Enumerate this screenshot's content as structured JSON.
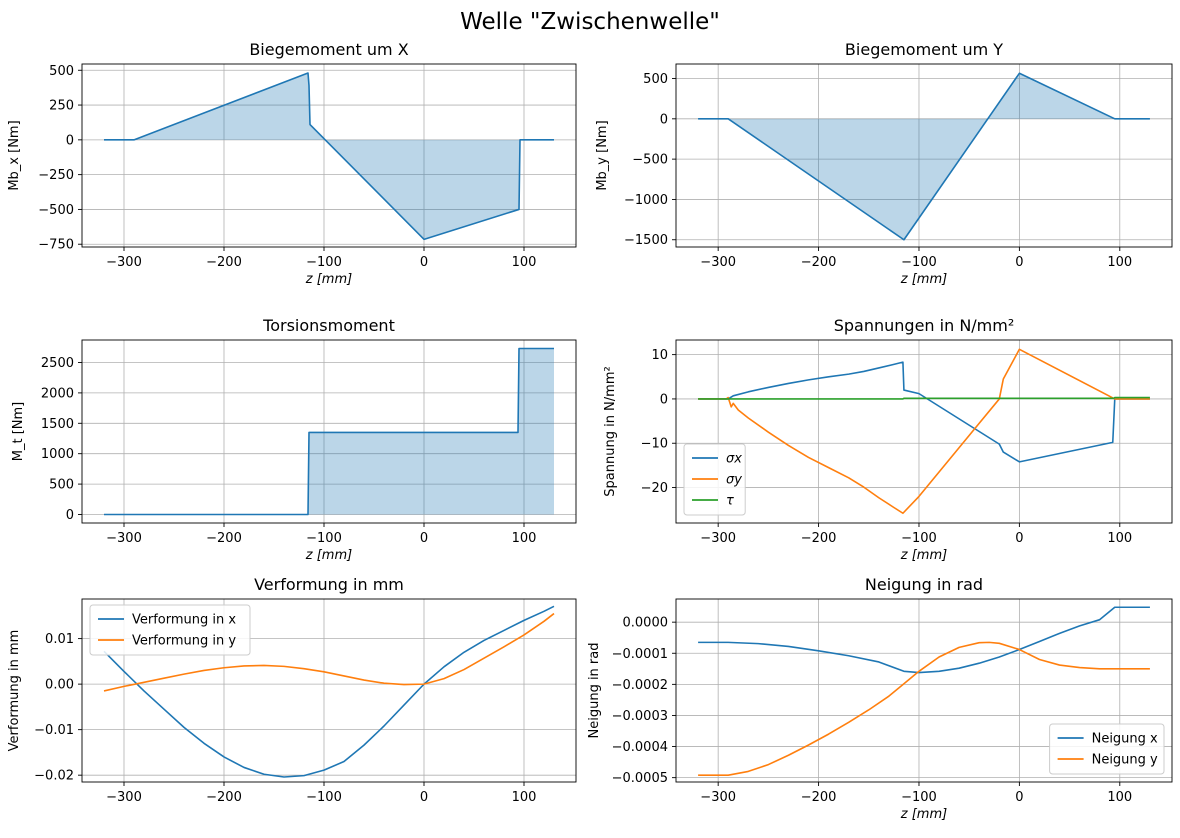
{
  "figure_title": "Welle \"Zwischenwelle\"",
  "colors": {
    "blue": "#1f77b4",
    "orange": "#ff7f0e",
    "green": "#2ca02c",
    "fill": "#1f77b4",
    "grid": "#b0b0b0"
  },
  "chart_data": [
    {
      "id": "mbx",
      "type": "area",
      "title": "Biegemoment um X",
      "xlabel": "z [mm]",
      "ylabel": "Mb_x [Nm]",
      "xlim": [
        -342,
        152
      ],
      "ylim": [
        -770,
        545
      ],
      "xticks": [
        -300,
        -200,
        -100,
        0,
        100
      ],
      "xtick_labels": [
        "−300",
        "−200",
        "−100",
        "0",
        "100"
      ],
      "yticks": [
        -750,
        -500,
        -250,
        0,
        250,
        500
      ],
      "ytick_labels": [
        "−750",
        "−500",
        "−250",
        "0",
        "250",
        "500"
      ],
      "grid": true,
      "fill_to_zero": true,
      "series": [
        {
          "color": "blue",
          "x": [
            -320,
            -290,
            -116,
            -115,
            -114,
            0,
            95,
            96,
            130
          ],
          "y": [
            0,
            0,
            480,
            390,
            110,
            -715,
            -500,
            0,
            0
          ]
        }
      ]
    },
    {
      "id": "mby",
      "type": "area",
      "title": "Biegemoment um Y",
      "xlabel": "z [mm]",
      "ylabel": "Mb_y [Nm]",
      "xlim": [
        -342,
        152
      ],
      "ylim": [
        -1590,
        680
      ],
      "xticks": [
        -300,
        -200,
        -100,
        0,
        100
      ],
      "xtick_labels": [
        "−300",
        "−200",
        "−100",
        "0",
        "100"
      ],
      "yticks": [
        -1500,
        -1000,
        -500,
        0,
        500
      ],
      "ytick_labels": [
        "−1500",
        "−1000",
        "−500",
        "0",
        "500"
      ],
      "grid": true,
      "fill_to_zero": true,
      "series": [
        {
          "color": "blue",
          "x": [
            -320,
            -290,
            -115,
            0,
            95,
            130
          ],
          "y": [
            0,
            0,
            -1500,
            565,
            0,
            0
          ]
        }
      ]
    },
    {
      "id": "mt",
      "type": "area",
      "title": "Torsionsmoment",
      "xlabel": "z [mm]",
      "ylabel": "M_t [Nm]",
      "xlim": [
        -342,
        152
      ],
      "ylim": [
        -140,
        2870
      ],
      "xticks": [
        -300,
        -200,
        -100,
        0,
        100
      ],
      "xtick_labels": [
        "−300",
        "−200",
        "−100",
        "0",
        "100"
      ],
      "yticks": [
        0,
        500,
        1000,
        1500,
        2000,
        2500
      ],
      "ytick_labels": [
        "0",
        "500",
        "1000",
        "1500",
        "2000",
        "2500"
      ],
      "grid": true,
      "fill_to_zero": true,
      "series": [
        {
          "color": "blue",
          "x": [
            -320,
            -116,
            -115,
            94,
            95,
            130
          ],
          "y": [
            0,
            0,
            1350,
            1350,
            2730,
            2730
          ]
        }
      ]
    },
    {
      "id": "stress",
      "type": "line",
      "title": "Spannungen in N/mm²",
      "xlabel": "z [mm]",
      "ylabel": "Spannung in N/mm²",
      "xlim": [
        -342,
        152
      ],
      "ylim": [
        -28,
        13.3
      ],
      "xticks": [
        -300,
        -200,
        -100,
        0,
        100
      ],
      "xtick_labels": [
        "−300",
        "−200",
        "−100",
        "0",
        "100"
      ],
      "yticks": [
        -20,
        -10,
        0,
        10
      ],
      "ytick_labels": [
        "−20",
        "−10",
        "0",
        "10"
      ],
      "grid": true,
      "legend": {
        "position": "lower-left",
        "entries": [
          "σx",
          "σy",
          "τ"
        ]
      },
      "series": [
        {
          "name": "σx",
          "color": "blue",
          "x": [
            -320,
            -290,
            -285,
            -270,
            -250,
            -230,
            -210,
            -190,
            -170,
            -155,
            -140,
            -125,
            -116,
            -115,
            -100,
            -60,
            -20,
            -16,
            0,
            93,
            95,
            130
          ],
          "y": [
            0,
            0,
            0.7,
            1.6,
            2.6,
            3.5,
            4.3,
            5.0,
            5.6,
            6.2,
            7.0,
            7.8,
            8.3,
            2.0,
            1.2,
            -4.5,
            -10.2,
            -12.0,
            -14.2,
            -9.8,
            0,
            0
          ]
        },
        {
          "name": "σy",
          "color": "orange",
          "x": [
            -320,
            -292,
            -290,
            -287,
            -285,
            -280,
            -270,
            -250,
            -230,
            -210,
            -190,
            -170,
            -155,
            -140,
            -125,
            -116,
            -100,
            -80,
            -60,
            -40,
            -20,
            -16,
            0,
            95,
            130
          ],
          "y": [
            0,
            0,
            0.3,
            -1.8,
            -1.0,
            -2.5,
            -4.3,
            -7.5,
            -10.5,
            -13.2,
            -15.5,
            -17.8,
            -19.9,
            -22.3,
            -24.5,
            -25.8,
            -22.0,
            -16.5,
            -11.0,
            -5.5,
            0,
            4.5,
            11.2,
            0,
            0
          ]
        },
        {
          "name": "τ",
          "color": "green",
          "x": [
            -320,
            -116,
            -115,
            94,
            95,
            130
          ],
          "y": [
            0,
            0,
            0.15,
            0.15,
            0.3,
            0.3
          ]
        }
      ]
    },
    {
      "id": "deform",
      "type": "line",
      "title": "Verformung in mm",
      "xlabel": "",
      "ylabel": "Verformung in mm",
      "xlim": [
        -342,
        152
      ],
      "ylim": [
        -0.0215,
        0.0187
      ],
      "xticks": [
        -300,
        -200,
        -100,
        0,
        100
      ],
      "xtick_labels": [
        "−300",
        "−200",
        "−100",
        "0",
        "100"
      ],
      "yticks": [
        -0.02,
        -0.01,
        0.0,
        0.01
      ],
      "ytick_labels": [
        "−0.02",
        "−0.01",
        "0.00",
        "0.01"
      ],
      "grid": true,
      "legend": {
        "position": "upper-left",
        "entries": [
          "Verformung in x",
          "Verformung in y"
        ]
      },
      "series": [
        {
          "name": "Verformung in x",
          "color": "blue",
          "x": [
            -320,
            -300,
            -280,
            -260,
            -240,
            -220,
            -200,
            -180,
            -160,
            -140,
            -120,
            -100,
            -80,
            -60,
            -40,
            -20,
            0,
            20,
            40,
            60,
            80,
            100,
            120,
            130
          ],
          "y": [
            0.0072,
            0.0028,
            -0.0015,
            -0.0055,
            -0.0095,
            -0.013,
            -0.016,
            -0.0183,
            -0.0198,
            -0.0204,
            -0.0201,
            -0.0189,
            -0.017,
            -0.0134,
            -0.0092,
            -0.0046,
            0.0,
            0.0038,
            0.007,
            0.0096,
            0.0118,
            0.014,
            0.016,
            0.0171
          ]
        },
        {
          "name": "Verformung in y",
          "color": "orange",
          "x": [
            -320,
            -300,
            -280,
            -260,
            -240,
            -220,
            -200,
            -180,
            -160,
            -140,
            -120,
            -100,
            -80,
            -60,
            -40,
            -20,
            0,
            20,
            40,
            60,
            80,
            100,
            120,
            130
          ],
          "y": [
            -0.0015,
            -0.0005,
            0.0004,
            0.0013,
            0.0022,
            0.003,
            0.0036,
            0.004,
            0.0041,
            0.0039,
            0.0034,
            0.0027,
            0.0018,
            0.0009,
            0.0002,
            -0.0001,
            0.0,
            0.0012,
            0.0032,
            0.0057,
            0.0082,
            0.0108,
            0.0138,
            0.0155
          ]
        }
      ]
    },
    {
      "id": "slope",
      "type": "line",
      "title": "Neigung in rad",
      "xlabel": "z [mm]",
      "ylabel": "Neigung in rad",
      "xlim": [
        -342,
        152
      ],
      "ylim": [
        -0.000514,
        7.45e-05
      ],
      "xticks": [
        -300,
        -200,
        -100,
        0,
        100
      ],
      "xtick_labels": [
        "−300",
        "−200",
        "−100",
        "0",
        "100"
      ],
      "yticks": [
        -0.0005,
        -0.0004,
        -0.0003,
        -0.0002,
        -0.0001,
        0.0
      ],
      "ytick_labels": [
        "−0.0005",
        "−0.0004",
        "−0.0003",
        "−0.0002",
        "−0.0001",
        "0.0000"
      ],
      "grid": true,
      "legend": {
        "position": "lower-right",
        "entries": [
          "Neigung x",
          "Neigung y"
        ]
      },
      "series": [
        {
          "name": "Neigung x",
          "color": "blue",
          "x": [
            -320,
            -290,
            -260,
            -230,
            -200,
            -170,
            -140,
            -115,
            -100,
            -80,
            -60,
            -40,
            -20,
            0,
            20,
            40,
            60,
            80,
            95,
            130
          ],
          "y": [
            -6.5e-05,
            -6.5e-05,
            -6.9e-05,
            -7.8e-05,
            -9.2e-05,
            -0.000108,
            -0.000128,
            -0.000158,
            -0.000162,
            -0.000158,
            -0.000148,
            -0.000132,
            -0.000112,
            -8.8e-05,
            -6.2e-05,
            -3.6e-05,
            -1.2e-05,
            8e-06,
            4.8e-05,
            4.8e-05
          ]
        },
        {
          "name": "Neigung y",
          "color": "orange",
          "x": [
            -320,
            -290,
            -270,
            -250,
            -230,
            -210,
            -190,
            -170,
            -150,
            -130,
            -115,
            -100,
            -80,
            -60,
            -40,
            -30,
            -20,
            0,
            20,
            40,
            60,
            80,
            95,
            130
          ],
          "y": [
            -0.000492,
            -0.000492,
            -0.00048,
            -0.000458,
            -0.000428,
            -0.000395,
            -0.00036,
            -0.000322,
            -0.000282,
            -0.000238,
            -0.000198,
            -0.000158,
            -0.000112,
            -8.1e-05,
            -6.6e-05,
            -6.5e-05,
            -6.8e-05,
            -8.8e-05,
            -0.00012,
            -0.000138,
            -0.000146,
            -0.00015,
            -0.00015,
            -0.00015
          ]
        }
      ]
    }
  ]
}
